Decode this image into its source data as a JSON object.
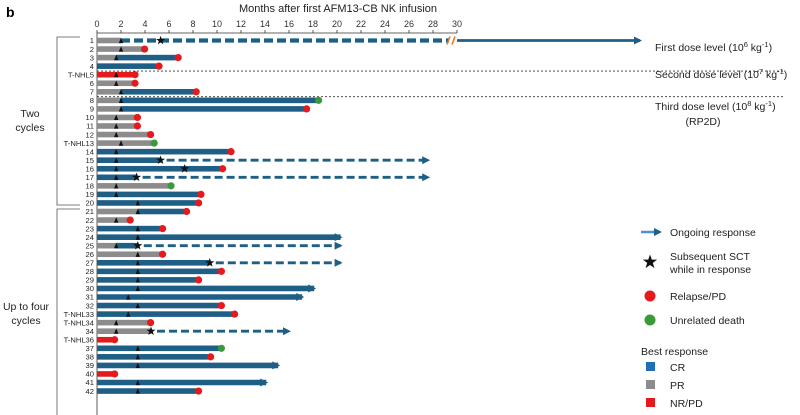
{
  "chart_data": {
    "type": "swimmer",
    "panel_label": "b",
    "title": "Months after first AFM13-CB NK infusion",
    "x_ticks": [
      0,
      2,
      4,
      6,
      8,
      10,
      12,
      14,
      16,
      18,
      20,
      22,
      24,
      26,
      28,
      30
    ],
    "xlim": [
      0,
      30
    ],
    "axis_break_at": 29.5,
    "colors": {
      "CR": "#1f5f86",
      "PR": "#8c8c8c",
      "NR/PD": "#e41a1c",
      "relapse": "#e41a1c",
      "death": "#3a9a3a",
      "ongoing": "#1f5f86"
    },
    "groups": [
      {
        "label_lines": [
          "Two",
          "cycles"
        ]
      },
      {
        "label_lines": [
          "Up to four",
          "cycles"
        ]
      }
    ],
    "dose_levels": [
      {
        "text": "First dose level (10",
        "sup": "6",
        "unit": " kg",
        "unit_sup": "-1",
        "tail": ")"
      },
      {
        "text": "Second dose level (10",
        "sup": "7",
        "unit": " kg",
        "unit_sup": "-1",
        "tail": ")"
      },
      {
        "text": "Third dose level (10",
        "sup": "8",
        "unit": " kg",
        "unit_sup": "-1",
        "tail": ")",
        "line2": "(RP2D)"
      }
    ],
    "legend": {
      "ongoing": "Ongoing response",
      "sct_lines": [
        "Subsequent SCT",
        "while in response"
      ],
      "relapse": "Relapse/PD",
      "death": "Unrelated death",
      "best_title": "Best response",
      "cr": "CR",
      "pr": "PR",
      "nr": "NR/PD"
    },
    "patients": [
      {
        "label": "1",
        "segments": [
          [
            "PR",
            0,
            2
          ],
          [
            "CR",
            2,
            29.3
          ]
        ],
        "infusions": [
          2
        ],
        "sct": 5.3,
        "dashed_from": 6.0,
        "ongoing": true,
        "broken": true
      },
      {
        "label": "2",
        "segments": [
          [
            "PR",
            0,
            3.8
          ]
        ],
        "infusions": [
          2
        ],
        "end": "relapse"
      },
      {
        "label": "3",
        "segments": [
          [
            "PR",
            0,
            1.6
          ],
          [
            "CR",
            1.6,
            6.6
          ]
        ],
        "infusions": [
          1.6
        ],
        "end": "relapse"
      },
      {
        "label": "4",
        "segments": [
          [
            "CR",
            0,
            5.0
          ]
        ],
        "infusions": [],
        "end": "relapse"
      },
      {
        "label": "T-NHL5",
        "segments": [
          [
            "NR/PD",
            0,
            3.0
          ]
        ],
        "infusions": [
          1.6
        ],
        "end": "relapse"
      },
      {
        "label": "6",
        "segments": [
          [
            "PR",
            0,
            3.0
          ]
        ],
        "infusions": [
          1.6
        ],
        "end": "relapse"
      },
      {
        "label": "7",
        "segments": [
          [
            "PR",
            0,
            2
          ],
          [
            "CR",
            2,
            8.1
          ]
        ],
        "infusions": [
          2
        ],
        "end": "relapse"
      },
      {
        "label": "8",
        "segments": [
          [
            "PR",
            0,
            2
          ],
          [
            "CR",
            2,
            18.3
          ]
        ],
        "infusions": [
          2
        ],
        "end": "death"
      },
      {
        "label": "9",
        "segments": [
          [
            "PR",
            0,
            2
          ],
          [
            "CR",
            2,
            17.3
          ]
        ],
        "infusions": [
          2
        ],
        "end": "relapse"
      },
      {
        "label": "10",
        "segments": [
          [
            "PR",
            0,
            3.2
          ]
        ],
        "infusions": [
          1.6
        ],
        "end": "relapse"
      },
      {
        "label": "11",
        "segments": [
          [
            "PR",
            0,
            3.2
          ]
        ],
        "infusions": [
          1.6
        ],
        "end": "relapse"
      },
      {
        "label": "12",
        "segments": [
          [
            "PR",
            0,
            4.3
          ]
        ],
        "infusions": [
          1.6
        ],
        "end": "relapse"
      },
      {
        "label": "T-NHL13",
        "segments": [
          [
            "PR",
            0,
            4.6
          ]
        ],
        "infusions": [
          2
        ],
        "end": "death"
      },
      {
        "label": "14",
        "segments": [
          [
            "CR",
            0,
            11.0
          ]
        ],
        "infusions": [
          1.6
        ],
        "end": "relapse"
      },
      {
        "label": "15",
        "segments": [
          [
            "CR",
            0,
            5.3
          ]
        ],
        "infusions": [
          1.6
        ],
        "sct": 5.3,
        "dashed_from": 5.8,
        "ongoing": true,
        "arrow_end": 28.1
      },
      {
        "label": "16",
        "segments": [
          [
            "CR",
            0,
            10.3
          ]
        ],
        "infusions": [
          1.6
        ],
        "sct": 7.3,
        "end": "relapse"
      },
      {
        "label": "17",
        "segments": [
          [
            "CR",
            0,
            3.3
          ]
        ],
        "infusions": [
          1.6
        ],
        "sct": 3.3,
        "dashed_from": 3.8,
        "ongoing": true,
        "arrow_end": 28.1
      },
      {
        "label": "18",
        "segments": [
          [
            "PR",
            0,
            6.0
          ]
        ],
        "infusions": [
          1.6
        ],
        "end": "death"
      },
      {
        "label": "19",
        "segments": [
          [
            "CR",
            0,
            8.5
          ]
        ],
        "infusions": [
          1.6
        ],
        "end": "relapse"
      },
      {
        "label": "20",
        "segments": [
          [
            "CR",
            0,
            8.3
          ]
        ],
        "infusions": [
          3.4
        ],
        "end": "relapse"
      },
      {
        "label": "21",
        "segments": [
          [
            "PR",
            0,
            3.4
          ],
          [
            "CR",
            3.4,
            7.3
          ]
        ],
        "infusions": [
          3.4
        ],
        "end": "relapse"
      },
      {
        "label": "22",
        "segments": [
          [
            "PR",
            0,
            2.6
          ]
        ],
        "infusions": [
          1.6
        ],
        "end": "relapse"
      },
      {
        "label": "23",
        "segments": [
          [
            "CR",
            0,
            5.3
          ]
        ],
        "infusions": [
          3.4
        ],
        "end": "relapse"
      },
      {
        "label": "24",
        "segments": [
          [
            "CR",
            0,
            20.8
          ]
        ],
        "infusions": [
          3.4
        ],
        "ongoing": true
      },
      {
        "label": "25",
        "segments": [
          [
            "PR",
            0,
            1.6
          ],
          [
            "CR",
            1.6,
            3.4
          ]
        ],
        "infusions": [
          1.6
        ],
        "sct": 3.4,
        "dashed_from": 3.9,
        "ongoing": true,
        "arrow_end": 20.8
      },
      {
        "label": "26",
        "segments": [
          [
            "PR",
            0,
            5.3
          ]
        ],
        "infusions": [
          3.4
        ],
        "end": "relapse"
      },
      {
        "label": "27",
        "segments": [
          [
            "CR",
            0,
            9.4
          ]
        ],
        "infusions": [
          3.4
        ],
        "sct": 9.4,
        "dashed_from": 9.9,
        "ongoing": true,
        "arrow_end": 20.8
      },
      {
        "label": "28",
        "segments": [
          [
            "CR",
            0,
            10.2
          ]
        ],
        "infusions": [
          3.4
        ],
        "end": "relapse"
      },
      {
        "label": "29",
        "segments": [
          [
            "CR",
            0,
            8.3
          ]
        ],
        "infusions": [
          3.4
        ],
        "end": "relapse"
      },
      {
        "label": "30",
        "segments": [
          [
            "CR",
            0,
            18.6
          ]
        ],
        "infusions": [
          3.4
        ],
        "ongoing": true
      },
      {
        "label": "31",
        "segments": [
          [
            "CR",
            0,
            17.6
          ]
        ],
        "infusions": [
          2.6
        ],
        "ongoing": true
      },
      {
        "label": "32",
        "segments": [
          [
            "CR",
            0,
            10.2
          ]
        ],
        "infusions": [
          3.4
        ],
        "end": "relapse"
      },
      {
        "label": "T-NHL33",
        "segments": [
          [
            "CR",
            0,
            11.3
          ]
        ],
        "infusions": [
          2.6
        ],
        "end": "relapse"
      },
      {
        "label": "T-NHL34",
        "segments": [
          [
            "PR",
            0,
            4.3
          ]
        ],
        "infusions": [
          1.6
        ],
        "end": "relapse"
      },
      {
        "label": "34",
        "segments": [
          [
            "PR",
            0,
            4.5
          ]
        ],
        "infusions": [
          1.6
        ],
        "sct": 4.5,
        "dashed_from": 5.0,
        "ongoing": true,
        "arrow_end": 16.5
      },
      {
        "label": "T-NHL36",
        "segments": [
          [
            "NR/PD",
            0,
            1.3
          ]
        ],
        "infusions": [],
        "end": "relapse"
      },
      {
        "label": "37",
        "segments": [
          [
            "CR",
            0,
            10.2
          ]
        ],
        "infusions": [
          3.4
        ],
        "end": "death"
      },
      {
        "label": "38",
        "segments": [
          [
            "CR",
            0,
            9.3
          ]
        ],
        "infusions": [
          3.4
        ],
        "end": "relapse"
      },
      {
        "label": "39",
        "segments": [
          [
            "CR",
            0,
            15.6
          ]
        ],
        "infusions": [
          3.4
        ],
        "ongoing": true
      },
      {
        "label": "40",
        "segments": [
          [
            "NR/PD",
            0,
            1.3
          ]
        ],
        "infusions": [],
        "end": "relapse"
      },
      {
        "label": "41",
        "segments": [
          [
            "CR",
            0,
            14.6
          ]
        ],
        "infusions": [
          3.4
        ],
        "ongoing": true
      },
      {
        "label": "42",
        "segments": [
          [
            "CR",
            0,
            8.3
          ]
        ],
        "infusions": [
          3.4
        ],
        "end": "relapse"
      }
    ]
  }
}
